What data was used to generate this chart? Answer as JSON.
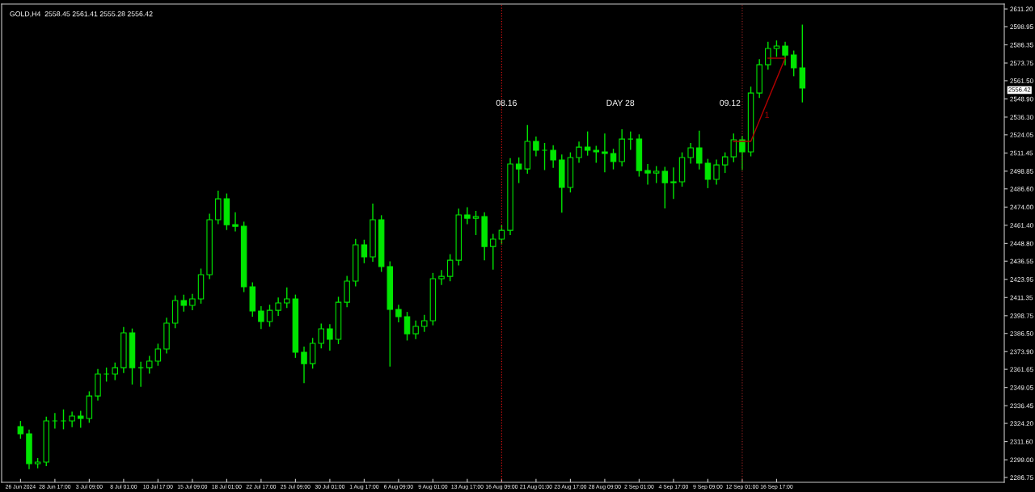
{
  "chart_data": {
    "type": "candlestick",
    "annotations": [
      "GOLD,H4  2558.45 2561.41 2555.28 2556.42",
      "08.16",
      "DAY 28",
      "09.12",
      "1",
      "2556.42"
    ],
    "categories": [
      "26 Jun 2024",
      null,
      null,
      null,
      "28 Jun 17:00",
      null,
      null,
      null,
      "3 Jul 09:00",
      null,
      null,
      null,
      "8 Jul 01:00",
      null,
      null,
      null,
      "10 Jul 17:00",
      null,
      null,
      null,
      "15 Jul 09:00",
      null,
      null,
      null,
      "18 Jul 01:00",
      null,
      null,
      null,
      "22 Jul 17:00",
      null,
      null,
      null,
      "25 Jul 09:00",
      null,
      null,
      null,
      "30 Jul 01:00",
      null,
      null,
      null,
      "1 Aug 17:00",
      null,
      null,
      null,
      "6 Aug 09:00",
      null,
      null,
      null,
      "9 Aug 01:00",
      null,
      null,
      null,
      "13 Aug 17:00",
      null,
      null,
      null,
      "16 Aug 09:00",
      null,
      null,
      null,
      "21 Aug 01:00",
      null,
      null,
      null,
      "23 Aug 17:00",
      null,
      null,
      null,
      "28 Aug 09:00",
      null,
      null,
      null,
      "2 Sep 01:00",
      null,
      null,
      null,
      "4 Sep 17:00",
      null,
      null,
      null,
      "9 Sep 09:00",
      null,
      null,
      null,
      "12 Sep 01:00",
      null,
      null,
      null,
      "16 Sep 17:00",
      null,
      null,
      null,
      null,
      null,
      null,
      null,
      null,
      null,
      null,
      null,
      null,
      null,
      null,
      null,
      null,
      null,
      null,
      null,
      null,
      null,
      null,
      null,
      null,
      null,
      null
    ],
    "color": "#00e600",
    "ohlc": [
      [
        2322.0,
        2325.5,
        2314.0,
        2317.0
      ],
      [
        2317.0,
        2319.5,
        2292.9,
        2296.3
      ],
      [
        2296.3,
        2299.8,
        2293.5,
        2297.4
      ],
      [
        2297.4,
        2328.5,
        2295.0,
        2325.9
      ],
      [
        2325.9,
        2331.0,
        2321.0,
        2325.9
      ],
      [
        2325.9,
        2333.5,
        2320.5,
        2325.9
      ],
      [
        2325.9,
        2332.0,
        2322.0,
        2329.3
      ],
      [
        2329.3,
        2332.5,
        2321.5,
        2327.6
      ],
      [
        2327.6,
        2346.0,
        2325.0,
        2343.2
      ],
      [
        2343.2,
        2361.5,
        2340.5,
        2358.4
      ],
      [
        2358.4,
        2362.5,
        2353.5,
        2358.4
      ],
      [
        2358.4,
        2366.0,
        2354.5,
        2362.8
      ],
      [
        2362.8,
        2390.5,
        2359.5,
        2386.9
      ],
      [
        2386.9,
        2389.5,
        2351.5,
        2362.8
      ],
      [
        2362.8,
        2366.5,
        2350.0,
        2362.8
      ],
      [
        2362.8,
        2370.5,
        2359.0,
        2367.3
      ],
      [
        2367.3,
        2379.0,
        2364.5,
        2375.7
      ],
      [
        2375.7,
        2397.0,
        2373.0,
        2393.6
      ],
      [
        2393.6,
        2412.5,
        2390.5,
        2409.3
      ],
      [
        2409.3,
        2413.0,
        2402.0,
        2405.9
      ],
      [
        2405.9,
        2413.5,
        2403.0,
        2410.4
      ],
      [
        2410.4,
        2431.0,
        2407.5,
        2427.2
      ],
      [
        2427.2,
        2469.0,
        2424.5,
        2465.2
      ],
      [
        2465.2,
        2485.0,
        2462.5,
        2479.7
      ],
      [
        2479.7,
        2483.0,
        2458.5,
        2461.8
      ],
      [
        2461.8,
        2470.0,
        2457.5,
        2460.7
      ],
      [
        2460.7,
        2463.5,
        2415.5,
        2418.8
      ],
      [
        2418.8,
        2421.5,
        2398.5,
        2402.0
      ],
      [
        2402.0,
        2405.0,
        2390.0,
        2394.7
      ],
      [
        2394.7,
        2406.0,
        2391.5,
        2402.5
      ],
      [
        2402.5,
        2411.0,
        2399.0,
        2407.6
      ],
      [
        2407.6,
        2418.0,
        2404.5,
        2410.4
      ],
      [
        2410.4,
        2413.0,
        2370.0,
        2373.5
      ],
      [
        2373.5,
        2377.0,
        2352.5,
        2365.6
      ],
      [
        2365.6,
        2383.0,
        2362.5,
        2379.6
      ],
      [
        2379.6,
        2393.0,
        2376.5,
        2389.7
      ],
      [
        2389.7,
        2392.5,
        2375.0,
        2382.4
      ],
      [
        2382.4,
        2411.5,
        2379.5,
        2408.1
      ],
      [
        2408.1,
        2426.0,
        2405.0,
        2422.7
      ],
      [
        2422.7,
        2451.5,
        2419.5,
        2447.9
      ],
      [
        2447.9,
        2451.0,
        2435.5,
        2439.5
      ],
      [
        2439.5,
        2476.0,
        2436.5,
        2465.2
      ],
      [
        2465.2,
        2468.0,
        2429.5,
        2432.8
      ],
      [
        2432.8,
        2436.0,
        2363.9,
        2403.1
      ],
      [
        2403.1,
        2406.0,
        2394.5,
        2398.1
      ],
      [
        2398.1,
        2401.0,
        2382.0,
        2386.3
      ],
      [
        2386.3,
        2395.0,
        2383.0,
        2391.4
      ],
      [
        2391.4,
        2399.0,
        2388.0,
        2395.3
      ],
      [
        2395.3,
        2428.0,
        2392.5,
        2424.4
      ],
      [
        2424.4,
        2430.0,
        2420.5,
        2426.0
      ],
      [
        2426.0,
        2441.0,
        2423.0,
        2437.2
      ],
      [
        2437.2,
        2472.5,
        2434.0,
        2468.6
      ],
      [
        2468.6,
        2473.5,
        2462.5,
        2466.3
      ],
      [
        2466.3,
        2471.0,
        2455.0,
        2467.4
      ],
      [
        2467.4,
        2470.0,
        2437.5,
        2446.7
      ],
      [
        2446.7,
        2455.0,
        2431.0,
        2451.8
      ],
      [
        2451.8,
        2461.0,
        2448.5,
        2457.9
      ],
      [
        2457.9,
        2507.5,
        2455.0,
        2503.8
      ],
      [
        2503.8,
        2508.0,
        2491.0,
        2500.4
      ],
      [
        2500.4,
        2530.5,
        2497.5,
        2519.5
      ],
      [
        2519.5,
        2522.5,
        2509.5,
        2513.3
      ],
      [
        2513.3,
        2518.0,
        2500.0,
        2513.3
      ],
      [
        2513.3,
        2516.5,
        2501.5,
        2506.6
      ],
      [
        2506.6,
        2510.0,
        2470.5,
        2487.6
      ],
      [
        2487.6,
        2511.5,
        2484.5,
        2508.3
      ],
      [
        2508.3,
        2519.0,
        2505.0,
        2515.5
      ],
      [
        2515.5,
        2526.0,
        2510.0,
        2513.3
      ],
      [
        2513.3,
        2516.0,
        2505.0,
        2512.2
      ],
      [
        2512.2,
        2524.5,
        2498.5,
        2511.1
      ],
      [
        2511.1,
        2514.0,
        2500.5,
        2505.5
      ],
      [
        2505.5,
        2527.5,
        2502.5,
        2521.1
      ],
      [
        2521.1,
        2526.0,
        2514.0,
        2521.1
      ],
      [
        2521.1,
        2524.0,
        2495.5,
        2499.3
      ],
      [
        2499.3,
        2503.5,
        2490.0,
        2497.6
      ],
      [
        2497.6,
        2502.0,
        2491.0,
        2498.8
      ],
      [
        2498.8,
        2501.5,
        2473.5,
        2490.9
      ],
      [
        2490.9,
        2501.0,
        2480.0,
        2491.5
      ],
      [
        2491.5,
        2511.5,
        2488.5,
        2508.3
      ],
      [
        2508.3,
        2518.0,
        2504.5,
        2515.0
      ],
      [
        2515.0,
        2526.5,
        2500.5,
        2504.4
      ],
      [
        2504.4,
        2507.0,
        2487.5,
        2493.2
      ],
      [
        2493.2,
        2506.5,
        2490.0,
        2503.2
      ],
      [
        2503.2,
        2511.5,
        2498.0,
        2508.8
      ],
      [
        2508.8,
        2524.5,
        2505.5,
        2520.6
      ],
      [
        2520.6,
        2523.0,
        2500.0,
        2512.2
      ],
      [
        2512.2,
        2557.0,
        2509.5,
        2553.0
      ],
      [
        2553.0,
        2576.0,
        2550.0,
        2572.6
      ],
      [
        2572.6,
        2588.0,
        2569.5,
        2583.8
      ],
      [
        2583.8,
        2589.0,
        2578.5,
        2585.5
      ],
      [
        2585.5,
        2588.0,
        2572.5,
        2579.3
      ],
      [
        2579.3,
        2582.0,
        2565.0,
        2570.4
      ],
      [
        2570.4,
        2600.0,
        2546.9,
        2556.4
      ],
      null,
      null,
      null,
      null,
      null,
      null,
      null,
      null,
      null,
      null,
      null,
      null,
      null,
      null,
      null,
      null,
      null,
      null,
      null,
      null,
      null,
      null,
      null
    ],
    "series": [
      {
        "type": "line",
        "color": "#b00000",
        "values": [
          null,
          null,
          null,
          null,
          null,
          null,
          null,
          null,
          null,
          null,
          null,
          null,
          null,
          null,
          null,
          null,
          null,
          null,
          null,
          null,
          null,
          null,
          null,
          null,
          null,
          null,
          null,
          null,
          null,
          null,
          null,
          null,
          null,
          null,
          null,
          null,
          null,
          null,
          null,
          null,
          null,
          null,
          null,
          null,
          null,
          null,
          null,
          null,
          null,
          null,
          null,
          null,
          null,
          null,
          null,
          null,
          null,
          null,
          null,
          null,
          null,
          null,
          null,
          null,
          null,
          null,
          null,
          null,
          null,
          null,
          null,
          null,
          null,
          null,
          null,
          null,
          null,
          null,
          null,
          null,
          null,
          null,
          null,
          2519.5,
          null,
          2519.5,
          null,
          null,
          null,
          2577.1,
          null,
          null,
          null,
          null,
          null,
          null,
          null,
          null,
          null,
          null,
          null,
          null,
          null,
          null,
          null,
          null,
          null,
          null,
          null,
          null,
          null,
          null,
          null,
          null,
          null
        ]
      },
      {
        "type": "line",
        "color": "#b00000",
        "values": [
          null,
          null,
          null,
          null,
          null,
          null,
          null,
          null,
          null,
          null,
          null,
          null,
          null,
          null,
          null,
          null,
          null,
          null,
          null,
          null,
          null,
          null,
          null,
          null,
          null,
          null,
          null,
          null,
          null,
          null,
          null,
          null,
          null,
          null,
          null,
          null,
          null,
          null,
          null,
          null,
          null,
          null,
          null,
          null,
          null,
          null,
          null,
          null,
          null,
          null,
          null,
          null,
          null,
          null,
          null,
          null,
          null,
          null,
          null,
          null,
          null,
          null,
          null,
          null,
          null,
          null,
          null,
          null,
          null,
          null,
          null,
          null,
          null,
          null,
          null,
          null,
          null,
          null,
          null,
          null,
          null,
          null,
          null,
          null,
          null,
          null,
          null,
          2577.1,
          null,
          2577.1,
          null,
          null,
          null,
          null,
          null,
          null,
          null,
          null,
          null,
          null,
          null,
          null,
          null,
          null,
          null,
          null,
          null,
          null,
          null,
          null,
          null,
          null,
          null,
          null,
          null
        ]
      }
    ],
    "ref_lines": [
      {
        "axis": "x",
        "value": "16 Aug 09:00",
        "color": "#d01010",
        "line_style": "dotted"
      },
      {
        "axis": "x",
        "value": "12 Sep 01:00",
        "color": "#8a2020",
        "line_style": "dotted"
      }
    ],
    "ylim": [
      2283.4,
      2614.6
    ],
    "yticks": [
      2286.75,
      {
        "value": 2299.0,
        "label": "2299.00"
      },
      {
        "value": 2311.6,
        "label": "2311.60"
      },
      {
        "value": 2324.2,
        "label": "2324.20"
      },
      2336.45,
      2349.05,
      2361.65,
      {
        "value": 2373.9,
        "label": "2373.90"
      },
      {
        "value": 2386.5,
        "label": "2386.50"
      },
      2398.75,
      2411.35,
      2423.95,
      2436.55,
      {
        "value": 2448.8,
        "label": "2448.80"
      },
      {
        "value": 2461.4,
        "label": "2461.40"
      },
      {
        "value": 2474.0,
        "label": "2474.00"
      },
      {
        "value": 2486.6,
        "label": "2486.60"
      },
      2498.85,
      2511.45,
      2524.05,
      {
        "value": 2536.3,
        "label": "2536.30"
      },
      {
        "value": 2548.9,
        "label": "2548.90"
      },
      {
        "value": 2561.5,
        "label": "2561.50"
      },
      2573.75,
      2586.35,
      2598.95,
      {
        "value": 2611.2,
        "label": "2611.20"
      }
    ]
  }
}
